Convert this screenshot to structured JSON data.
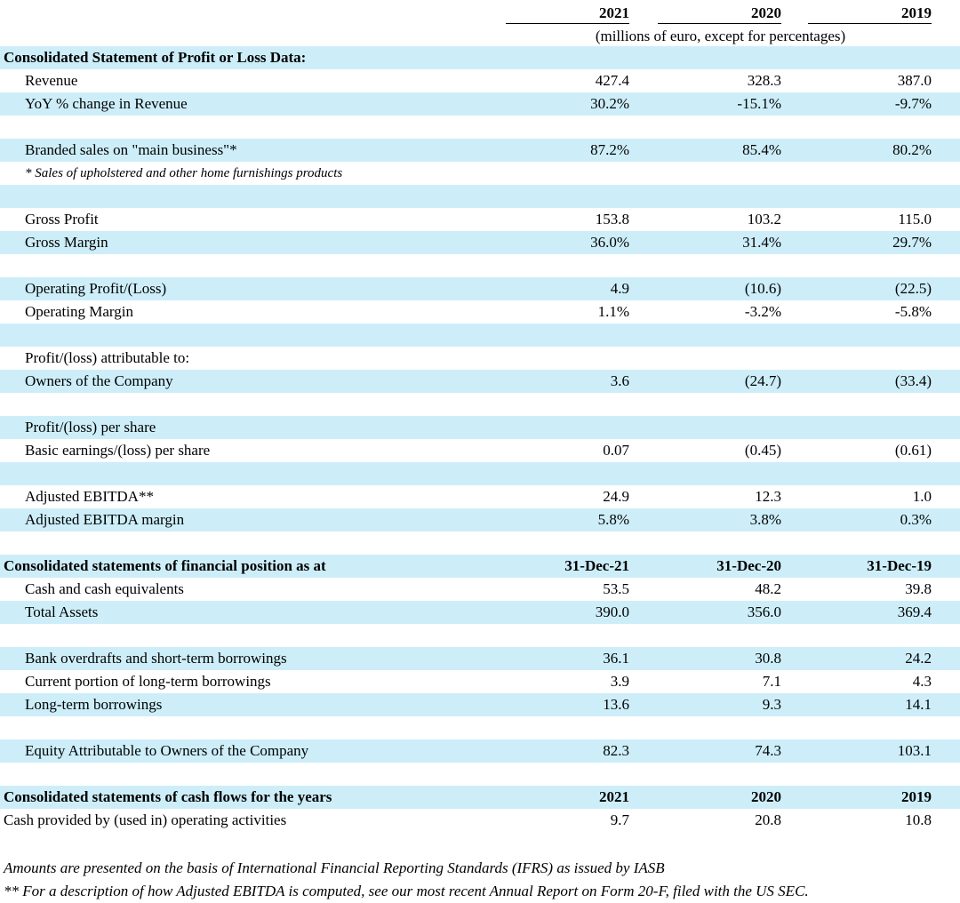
{
  "header": {
    "years": [
      "2021",
      "2020",
      "2019"
    ],
    "units": "(millions of euro, except for percentages)"
  },
  "rows": [
    {
      "label": "Consolidated Statement of Profit or Loss Data:",
      "bold": true,
      "bg": true,
      "v": []
    },
    {
      "label": "Revenue",
      "indent": true,
      "v": [
        "427.4",
        "328.3",
        "387.0"
      ]
    },
    {
      "label": "YoY % change in Revenue",
      "indent": true,
      "bg": true,
      "v": [
        "30.2%",
        "-15.1%",
        "-9.7%"
      ]
    },
    {
      "label": "",
      "v": []
    },
    {
      "label": "Branded sales on \"main business\"*",
      "indent": true,
      "bg": true,
      "v": [
        "87.2%",
        "85.4%",
        "80.2%"
      ]
    },
    {
      "label": "* Sales of upholstered and other home furnishings products",
      "indent": true,
      "italic": true,
      "v": []
    },
    {
      "label": "",
      "bg": true,
      "v": []
    },
    {
      "label": "Gross Profit",
      "indent": true,
      "v": [
        "153.8",
        "103.2",
        "115.0"
      ]
    },
    {
      "label": "Gross Margin",
      "indent": true,
      "bg": true,
      "v": [
        "36.0%",
        "31.4%",
        "29.7%"
      ]
    },
    {
      "label": "",
      "v": []
    },
    {
      "label": "Operating Profit/(Loss)",
      "indent": true,
      "bg": true,
      "v": [
        "4.9",
        "(10.6)",
        "(22.5)"
      ]
    },
    {
      "label": "Operating Margin",
      "indent": true,
      "v": [
        "1.1%",
        "-3.2%",
        "-5.8%"
      ]
    },
    {
      "label": "",
      "bg": true,
      "v": []
    },
    {
      "label": "Profit/(loss) attributable to:",
      "indent": true,
      "v": []
    },
    {
      "label": "Owners of the Company",
      "indent": true,
      "bg": true,
      "v": [
        "3.6",
        "(24.7)",
        "(33.4)"
      ]
    },
    {
      "label": "",
      "v": []
    },
    {
      "label": "Profit/(loss) per share",
      "indent": true,
      "bg": true,
      "v": []
    },
    {
      "label": "Basic earnings/(loss) per share",
      "indent": true,
      "v": [
        "0.07",
        "(0.45)",
        "(0.61)"
      ]
    },
    {
      "label": "",
      "bg": true,
      "v": []
    },
    {
      "label": "Adjusted EBITDA**",
      "indent": true,
      "v": [
        "24.9",
        "12.3",
        "1.0"
      ]
    },
    {
      "label": "Adjusted EBITDA margin",
      "indent": true,
      "bg": true,
      "v": [
        "5.8%",
        "3.8%",
        "0.3%"
      ]
    },
    {
      "label": "",
      "v": []
    },
    {
      "label": "Consolidated statements of financial position as at",
      "bold": true,
      "bg": true,
      "boldvals": true,
      "v": [
        "31-Dec-21",
        "31-Dec-20",
        "31-Dec-19"
      ]
    },
    {
      "label": "Cash and cash equivalents",
      "indent": true,
      "v": [
        "53.5",
        "48.2",
        "39.8"
      ]
    },
    {
      "label": "Total Assets",
      "indent": true,
      "bg": true,
      "v": [
        "390.0",
        "356.0",
        "369.4"
      ]
    },
    {
      "label": "",
      "v": []
    },
    {
      "label": "Bank overdrafts and short-term borrowings",
      "indent": true,
      "bg": true,
      "v": [
        "36.1",
        "30.8",
        "24.2"
      ]
    },
    {
      "label": "Current portion of long-term borrowings",
      "indent": true,
      "v": [
        "3.9",
        "7.1",
        "4.3"
      ]
    },
    {
      "label": "Long-term borrowings",
      "indent": true,
      "bg": true,
      "v": [
        "13.6",
        "9.3",
        "14.1"
      ]
    },
    {
      "label": "",
      "v": []
    },
    {
      "label": "Equity Attributable to Owners of the Company",
      "indent": true,
      "bg": true,
      "v": [
        "82.3",
        "74.3",
        "103.1"
      ]
    },
    {
      "label": "",
      "v": []
    },
    {
      "label": "Consolidated statements of cash flows for the years",
      "bold": true,
      "bg": true,
      "boldvals": true,
      "v": [
        "2021",
        "2020",
        "2019"
      ]
    },
    {
      "label": "Cash provided by (used in) operating activities",
      "v": [
        "9.7",
        "20.8",
        "10.8"
      ]
    }
  ],
  "footnotes": [
    "Amounts  are presented on the basis of International Financial Reporting Standards (IFRS) as issued by IASB",
    "** For a description of how Adjusted EBITDA is computed, see our most recent Annual Report on Form 20-F, filed with the US SEC."
  ]
}
